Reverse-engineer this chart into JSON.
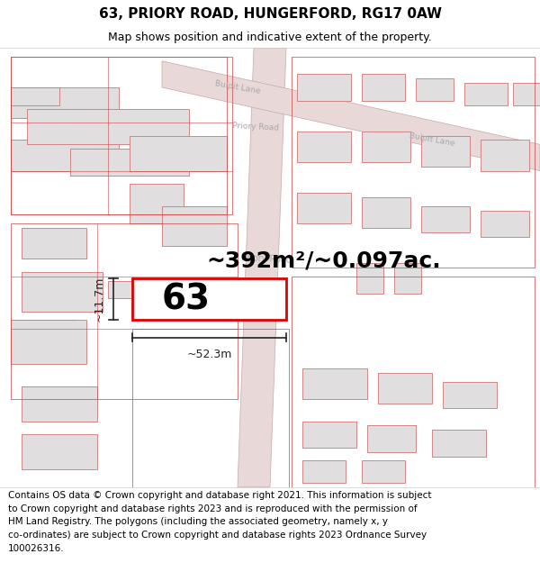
{
  "title": "63, PRIORY ROAD, HUNGERFORD, RG17 0AW",
  "subtitle": "Map shows position and indicative extent of the property.",
  "area_text": "~392m²/~0.097ac.",
  "property_number": "63",
  "dim_width": "~52.3m",
  "dim_height": "~11.7m",
  "footer_lines": [
    "Contains OS data © Crown copyright and database right 2021. This information is subject",
    "to Crown copyright and database rights 2023 and is reproduced with the permission of",
    "HM Land Registry. The polygons (including the associated geometry, namely x, y",
    "co-ordinates) are subject to Crown copyright and database rights 2023 Ordnance Survey",
    "100026316."
  ],
  "bg_white": "#ffffff",
  "map_bg": "#ffffff",
  "road_fill": "#e8d8d8",
  "road_edge": "#c8a8a8",
  "highlight_color": "#dd0000",
  "building_fill": "#e0dede",
  "building_stroke": "#cc7777",
  "plot_outline": "#cc4444",
  "road_label_color": "#aaaaaa",
  "dim_color": "#222222",
  "title_fontsize": 11,
  "subtitle_fontsize": 9,
  "area_fontsize": 18,
  "number_fontsize": 28,
  "dim_fontsize": 9,
  "footer_fontsize": 7.5
}
